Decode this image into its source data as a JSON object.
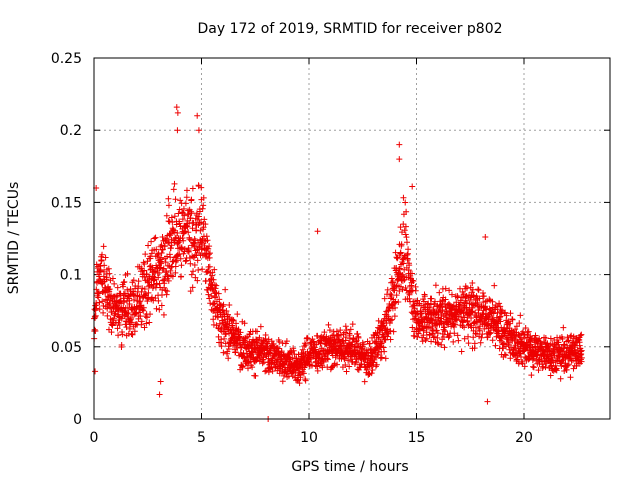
{
  "chart_data": {
    "type": "scatter",
    "title": "Day 172 of 2019, SRMTID for receiver p802",
    "xlabel": "GPS time / hours",
    "ylabel": "SRMTID / TECUs",
    "xlim": [
      0,
      24
    ],
    "ylim": [
      0,
      0.25
    ],
    "x_ticks": [
      0,
      5,
      10,
      15,
      20
    ],
    "x_tick_labels": [
      "0",
      "5",
      "10",
      "15",
      "20"
    ],
    "y_ticks": [
      0,
      0.05,
      0.1,
      0.15,
      0.2,
      0.25
    ],
    "y_tick_labels": [
      "0",
      "0.05",
      "0.1",
      "0.15",
      "0.2",
      "0.25"
    ],
    "grid": true,
    "marker": "+",
    "series": [
      {
        "name": "SRMTID",
        "color": "#ee0000",
        "x_range": [
          0,
          22.7
        ],
        "sample_interval_hours": 0.0083,
        "trend": {
          "hours": [
            0,
            0.3,
            1,
            2,
            3,
            3.5,
            4,
            4.5,
            5,
            5.5,
            6,
            7,
            8,
            9,
            9.5,
            10,
            11,
            12,
            12.8,
            13.5,
            14,
            14.4,
            15,
            16,
            17,
            18,
            19,
            20,
            21,
            22,
            22.7
          ],
          "srmtid": [
            0.07,
            0.1,
            0.075,
            0.08,
            0.1,
            0.12,
            0.13,
            0.12,
            0.13,
            0.09,
            0.065,
            0.05,
            0.045,
            0.04,
            0.035,
            0.045,
            0.05,
            0.05,
            0.04,
            0.06,
            0.09,
            0.12,
            0.07,
            0.07,
            0.075,
            0.075,
            0.06,
            0.05,
            0.045,
            0.045,
            0.05
          ]
        },
        "notable_points": [
          {
            "x": 0.05,
            "y": 0.033
          },
          {
            "x": 0.1,
            "y": 0.16
          },
          {
            "x": 3.05,
            "y": 0.017
          },
          {
            "x": 3.1,
            "y": 0.026
          },
          {
            "x": 3.85,
            "y": 0.216
          },
          {
            "x": 3.9,
            "y": 0.212
          },
          {
            "x": 3.88,
            "y": 0.2
          },
          {
            "x": 4.8,
            "y": 0.21
          },
          {
            "x": 4.88,
            "y": 0.2
          },
          {
            "x": 8.1,
            "y": 0.0
          },
          {
            "x": 10.4,
            "y": 0.13
          },
          {
            "x": 14.2,
            "y": 0.19
          },
          {
            "x": 14.2,
            "y": 0.18
          },
          {
            "x": 14.8,
            "y": 0.161
          },
          {
            "x": 18.3,
            "y": 0.012
          },
          {
            "x": 18.2,
            "y": 0.126
          }
        ]
      }
    ]
  }
}
